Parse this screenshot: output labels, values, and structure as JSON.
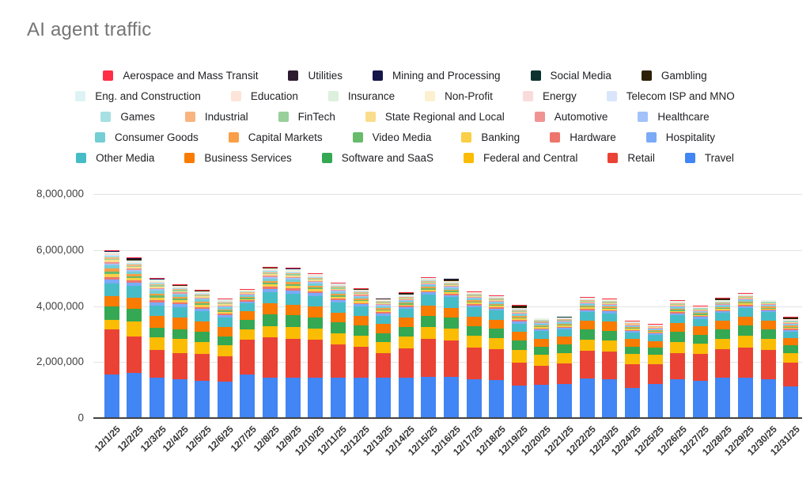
{
  "title": "AI agent traffic",
  "legend_rows": [
    [
      "Aerospace and Mass Transit",
      "Utilities",
      "Mining and Processing",
      "Social Media",
      "Gambling"
    ],
    [
      "Eng. and Construction",
      "Education",
      "Insurance",
      "Non-Profit",
      "Energy",
      "Telecom ISP and MNO"
    ],
    [
      "Games",
      "Industrial",
      "FinTech",
      "State Regional and Local",
      "Automotive",
      "Healthcare"
    ],
    [
      "Consumer Goods",
      "Capital Markets",
      "Video Media",
      "Banking",
      "Hardware",
      "Hospitality"
    ],
    [
      "Other Media",
      "Business Services",
      "Software and SaaS",
      "Federal and Central",
      "Retail",
      "Travel"
    ]
  ],
  "chart_data": {
    "type": "bar",
    "stacked": true,
    "title": "AI agent traffic",
    "xlabel": "",
    "ylabel": "",
    "grid": true,
    "legend_position": "top-center",
    "value_unit": "thousands",
    "ylim_k": 8000,
    "ytick_values_k": [
      0,
      2000,
      4000,
      6000,
      8000
    ],
    "ytick_labels": [
      "0",
      "2,000,000",
      "4,000,000",
      "6,000,000",
      "8,000,000"
    ],
    "x": [
      "12/1/25",
      "12/2/25",
      "12/3/25",
      "12/4/25",
      "12/5/25",
      "12/6/25",
      "12/7/25",
      "12/8/25",
      "12/9/25",
      "12/10/25",
      "12/11/25",
      "12/12/25",
      "12/13/25",
      "12/14/25",
      "12/15/25",
      "12/16/25",
      "12/17/25",
      "12/18/25",
      "12/19/25",
      "12/20/25",
      "12/21/25",
      "12/22/25",
      "12/23/25",
      "12/24/25",
      "12/25/25",
      "12/26/25",
      "12/27/25",
      "12/28/25",
      "12/29/25",
      "12/30/25",
      "12/31/25"
    ],
    "series": [
      {
        "name": "Travel",
        "color": "#4285F4",
        "values_k": [
          1530,
          1580,
          1410,
          1350,
          1300,
          1280,
          1530,
          1400,
          1400,
          1420,
          1400,
          1420,
          1400,
          1420,
          1450,
          1450,
          1350,
          1320,
          1120,
          1150,
          1180,
          1380,
          1350,
          1050,
          1200,
          1350,
          1300,
          1420,
          1400,
          1350,
          1100
        ]
      },
      {
        "name": "Retail",
        "color": "#EA4335",
        "values_k": [
          1610,
          1300,
          990,
          950,
          950,
          900,
          1240,
          1450,
          1400,
          1350,
          1200,
          1100,
          900,
          1050,
          1350,
          1300,
          1150,
          1100,
          820,
          700,
          750,
          1000,
          1000,
          850,
          700,
          950,
          950,
          1000,
          1100,
          1050,
          850
        ]
      },
      {
        "name": "Federal and Central",
        "color": "#FBBC04",
        "values_k": [
          330,
          550,
          450,
          500,
          450,
          400,
          370,
          400,
          420,
          400,
          400,
          400,
          380,
          400,
          420,
          420,
          400,
          400,
          450,
          380,
          360,
          400,
          400,
          350,
          320,
          400,
          380,
          380,
          420,
          400,
          330
        ]
      },
      {
        "name": "Software and SaaS",
        "color": "#34A853",
        "values_k": [
          480,
          450,
          340,
          350,
          350,
          300,
          340,
          420,
          420,
          400,
          380,
          350,
          320,
          350,
          400,
          380,
          350,
          340,
          350,
          300,
          300,
          350,
          340,
          280,
          260,
          340,
          320,
          330,
          350,
          340,
          280
        ]
      },
      {
        "name": "Business Services",
        "color": "#F97B00",
        "values_k": [
          390,
          400,
          420,
          400,
          380,
          350,
          310,
          400,
          380,
          380,
          360,
          350,
          330,
          330,
          380,
          360,
          340,
          330,
          300,
          280,
          280,
          330,
          320,
          260,
          240,
          320,
          300,
          310,
          330,
          320,
          260
        ]
      },
      {
        "name": "Other Media",
        "color": "#46BDC6",
        "values_k": [
          430,
          400,
          370,
          380,
          350,
          320,
          280,
          400,
          400,
          380,
          360,
          330,
          300,
          320,
          380,
          380,
          340,
          330,
          300,
          260,
          260,
          300,
          300,
          240,
          220,
          280,
          270,
          280,
          300,
          290,
          240
        ]
      },
      {
        "name": "Hospitality",
        "color": "#7BAAF7",
        "values_k": [
          150,
          121,
          124,
          103,
          96,
          86,
          64,
          113,
          115,
          103,
          88,
          81,
          78,
          66,
          78,
          76,
          71,
          66,
          76,
          60,
          59,
          66,
          66,
          53,
          49,
          68,
          58,
          60,
          66,
          56,
          59
        ]
      },
      {
        "name": "Hardware",
        "color": "#EE756C",
        "values_k": [
          96,
          78,
          79,
          66,
          62,
          55,
          41,
          72,
          74,
          66,
          56,
          52,
          50,
          42,
          50,
          49,
          46,
          42,
          49,
          38,
          38,
          42,
          42,
          34,
          31,
          43,
          37,
          38,
          42,
          36,
          38
        ]
      },
      {
        "name": "Banking",
        "color": "#F9CF48",
        "values_k": [
          114,
          92,
          94,
          78,
          73,
          66,
          48,
          86,
          87,
          78,
          67,
          62,
          59,
          50,
          59,
          58,
          54,
          50,
          58,
          46,
          45,
          50,
          50,
          40,
          37,
          51,
          44,
          46,
          50,
          43,
          45
        ]
      },
      {
        "name": "Video Media",
        "color": "#67BB6A",
        "values_k": [
          84,
          68,
          69,
          57,
          54,
          48,
          36,
          63,
          64,
          57,
          49,
          46,
          43,
          37,
          43,
          43,
          40,
          37,
          43,
          34,
          33,
          37,
          37,
          29,
          27,
          38,
          32,
          34,
          37,
          32,
          33
        ]
      },
      {
        "name": "Capital Markets",
        "color": "#FA9E47",
        "values_k": [
          96,
          78,
          79,
          66,
          62,
          55,
          41,
          72,
          74,
          66,
          56,
          52,
          50,
          42,
          50,
          49,
          46,
          42,
          49,
          38,
          38,
          42,
          42,
          34,
          31,
          43,
          37,
          38,
          42,
          36,
          38
        ]
      },
      {
        "name": "Consumer Goods",
        "color": "#74CED4",
        "values_k": [
          114,
          92,
          94,
          78,
          73,
          66,
          48,
          86,
          87,
          78,
          67,
          62,
          59,
          50,
          59,
          58,
          54,
          50,
          58,
          46,
          45,
          50,
          50,
          40,
          37,
          51,
          44,
          46,
          50,
          43,
          45
        ]
      },
      {
        "name": "Healthcare",
        "color": "#A2C2F9",
        "values_k": [
          66,
          53,
          54,
          45,
          42,
          38,
          28,
          50,
          51,
          45,
          39,
          36,
          34,
          29,
          34,
          34,
          31,
          29,
          34,
          26,
          26,
          29,
          29,
          23,
          21,
          30,
          25,
          26,
          29,
          25,
          26
        ]
      },
      {
        "name": "Automotive",
        "color": "#F09493",
        "values_k": [
          60,
          49,
          50,
          41,
          39,
          35,
          26,
          45,
          46,
          41,
          35,
          33,
          31,
          27,
          31,
          31,
          29,
          27,
          31,
          24,
          24,
          27,
          27,
          21,
          20,
          27,
          23,
          24,
          27,
          23,
          24
        ]
      },
      {
        "name": "State Regional and Local",
        "color": "#FADD8C",
        "values_k": [
          66,
          53,
          54,
          45,
          42,
          38,
          28,
          50,
          51,
          45,
          39,
          36,
          34,
          29,
          34,
          34,
          31,
          29,
          34,
          26,
          26,
          29,
          29,
          23,
          21,
          30,
          25,
          26,
          29,
          25,
          26
        ]
      },
      {
        "name": "FinTech",
        "color": "#98CF9A",
        "values_k": [
          54,
          44,
          45,
          37,
          35,
          31,
          23,
          41,
          41,
          37,
          32,
          29,
          28,
          24,
          28,
          27,
          26,
          24,
          27,
          22,
          21,
          24,
          24,
          19,
          18,
          24,
          21,
          22,
          24,
          20,
          21
        ]
      },
      {
        "name": "Industrial",
        "color": "#F8B47F",
        "values_k": [
          54,
          44,
          45,
          37,
          35,
          31,
          23,
          41,
          41,
          37,
          32,
          29,
          28,
          24,
          28,
          27,
          26,
          24,
          27,
          22,
          21,
          24,
          24,
          19,
          18,
          24,
          21,
          22,
          24,
          20,
          21
        ]
      },
      {
        "name": "Games",
        "color": "#A6E0E3",
        "values_k": [
          42,
          34,
          35,
          29,
          27,
          24,
          18,
          32,
          32,
          29,
          25,
          23,
          22,
          19,
          22,
          21,
          20,
          19,
          21,
          17,
          16,
          19,
          19,
          15,
          14,
          19,
          16,
          17,
          19,
          16,
          16
        ]
      },
      {
        "name": "Telecom ISP and MNO",
        "color": "#D9E5FB",
        "values_k": [
          24,
          19,
          20,
          16,
          15,
          14,
          10,
          18,
          18,
          16,
          14,
          13,
          12,
          11,
          12,
          12,
          11,
          11,
          12,
          10,
          9,
          11,
          11,
          8,
          8,
          11,
          9,
          10,
          11,
          9,
          9
        ]
      },
      {
        "name": "Energy",
        "color": "#FADBDB",
        "values_k": [
          24,
          19,
          20,
          16,
          15,
          14,
          10,
          18,
          18,
          16,
          14,
          13,
          12,
          11,
          12,
          12,
          11,
          11,
          12,
          10,
          9,
          11,
          11,
          8,
          8,
          11,
          9,
          10,
          11,
          9,
          9
        ]
      },
      {
        "name": "Non-Profit",
        "color": "#FCF0CE",
        "values_k": [
          24,
          19,
          20,
          16,
          15,
          14,
          10,
          18,
          18,
          16,
          14,
          13,
          12,
          11,
          12,
          12,
          11,
          11,
          12,
          10,
          9,
          11,
          11,
          8,
          8,
          11,
          9,
          10,
          11,
          9,
          9
        ]
      },
      {
        "name": "Insurance",
        "color": "#DDEFDD",
        "values_k": [
          24,
          19,
          20,
          16,
          15,
          14,
          10,
          18,
          18,
          16,
          14,
          13,
          12,
          11,
          12,
          12,
          11,
          11,
          12,
          10,
          9,
          11,
          11,
          8,
          8,
          11,
          9,
          10,
          11,
          9,
          9
        ]
      },
      {
        "name": "Education",
        "color": "#FCE5D8",
        "values_k": [
          24,
          19,
          20,
          16,
          15,
          14,
          10,
          18,
          18,
          16,
          14,
          13,
          12,
          11,
          12,
          12,
          11,
          11,
          12,
          10,
          9,
          11,
          11,
          8,
          8,
          11,
          9,
          10,
          11,
          9,
          9
        ]
      },
      {
        "name": "Eng. and Construction",
        "color": "#DDF3F4",
        "values_k": [
          24,
          19,
          20,
          16,
          15,
          14,
          10,
          18,
          18,
          16,
          14,
          13,
          12,
          11,
          12,
          12,
          11,
          11,
          12,
          10,
          9,
          11,
          11,
          8,
          8,
          11,
          9,
          10,
          11,
          9,
          9
        ]
      },
      {
        "name": "Gambling",
        "color": "#2E2005",
        "values_k": [
          10,
          68,
          8,
          7,
          6,
          6,
          4,
          7,
          7,
          7,
          6,
          5,
          5,
          64,
          5,
          65,
          5,
          4,
          65,
          4,
          4,
          4,
          4,
          3,
          3,
          4,
          4,
          64,
          4,
          4,
          64
        ]
      },
      {
        "name": "Social Media",
        "color": "#0D3330",
        "values_k": [
          6,
          5,
          5,
          4,
          4,
          3,
          3,
          5,
          5,
          4,
          4,
          3,
          3,
          3,
          3,
          3,
          3,
          3,
          3,
          2,
          2,
          3,
          3,
          2,
          2,
          3,
          2,
          2,
          3,
          2,
          2
        ]
      },
      {
        "name": "Mining and Processing",
        "color": "#14164A",
        "values_k": [
          6,
          5,
          5,
          4,
          4,
          3,
          3,
          5,
          5,
          4,
          4,
          3,
          3,
          3,
          3,
          3,
          3,
          3,
          3,
          2,
          2,
          3,
          3,
          2,
          2,
          3,
          2,
          2,
          3,
          2,
          2
        ]
      },
      {
        "name": "Utilities",
        "color": "#2E1A2E",
        "values_k": [
          6,
          5,
          5,
          4,
          4,
          3,
          3,
          5,
          5,
          4,
          4,
          3,
          3,
          3,
          3,
          3,
          3,
          3,
          3,
          2,
          2,
          3,
          3,
          2,
          2,
          3,
          2,
          2,
          3,
          2,
          2
        ]
      },
      {
        "name": "Aerospace and Mass Transit",
        "color": "#FF2E45",
        "values_k": [
          32,
          26,
          27,
          22,
          21,
          19,
          14,
          24,
          25,
          22,
          19,
          18,
          17,
          14,
          17,
          16,
          15,
          14,
          16,
          13,
          13,
          14,
          14,
          11,
          11,
          15,
          12,
          13,
          14,
          12,
          13
        ]
      }
    ]
  }
}
